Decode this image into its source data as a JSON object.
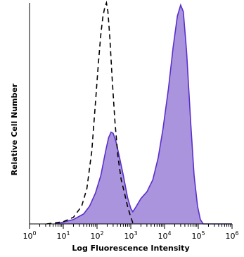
{
  "chart_data": {
    "type": "area",
    "title": "",
    "xlabel": "Log Fluorescence Intensity",
    "ylabel": "Relative Cell Number",
    "x_scale": "log",
    "xlim": [
      1,
      1000000
    ],
    "ylim": [
      0,
      1
    ],
    "grid": false,
    "legend": "none",
    "y_ticks": "none",
    "x_ticks": [
      {
        "value": 1,
        "base": "10",
        "exp": "0"
      },
      {
        "value": 10,
        "base": "10",
        "exp": "1"
      },
      {
        "value": 100,
        "base": "10",
        "exp": "2"
      },
      {
        "value": 1000,
        "base": "10",
        "exp": "3"
      },
      {
        "value": 10000,
        "base": "10",
        "exp": "4"
      },
      {
        "value": 100000,
        "base": "10",
        "exp": "5"
      },
      {
        "value": 1000000,
        "base": "10",
        "exp": "6"
      }
    ],
    "series": [
      {
        "style": "filled",
        "color": "#a994dd",
        "stroke": "#5b2fc9",
        "points": [
          [
            5.6,
            0.0
          ],
          [
            8,
            0.005
          ],
          [
            10,
            0.008
          ],
          [
            20,
            0.02
          ],
          [
            40,
            0.045
          ],
          [
            60,
            0.08
          ],
          [
            90,
            0.14
          ],
          [
            130,
            0.22
          ],
          [
            180,
            0.33
          ],
          [
            220,
            0.39
          ],
          [
            260,
            0.415
          ],
          [
            300,
            0.41
          ],
          [
            360,
            0.375
          ],
          [
            450,
            0.31
          ],
          [
            600,
            0.22
          ],
          [
            800,
            0.12
          ],
          [
            1000,
            0.07
          ],
          [
            1150,
            0.055
          ],
          [
            1400,
            0.075
          ],
          [
            2000,
            0.115
          ],
          [
            3000,
            0.145
          ],
          [
            4500,
            0.2
          ],
          [
            6500,
            0.3
          ],
          [
            9000,
            0.43
          ],
          [
            13000,
            0.61
          ],
          [
            18000,
            0.8
          ],
          [
            24000,
            0.94
          ],
          [
            30000,
            0.99
          ],
          [
            36000,
            0.96
          ],
          [
            45000,
            0.78
          ],
          [
            60000,
            0.45
          ],
          [
            75000,
            0.22
          ],
          [
            95000,
            0.08
          ],
          [
            115000,
            0.02
          ],
          [
            140000,
            0.0
          ],
          [
            1000000,
            0.0
          ]
        ]
      },
      {
        "style": "dashed",
        "color": "#000000",
        "points": [
          [
            3.2,
            0.0
          ],
          [
            6,
            0.005
          ],
          [
            10,
            0.01
          ],
          [
            20,
            0.03
          ],
          [
            35,
            0.08
          ],
          [
            50,
            0.16
          ],
          [
            70,
            0.33
          ],
          [
            90,
            0.55
          ],
          [
            110,
            0.73
          ],
          [
            130,
            0.86
          ],
          [
            150,
            0.94
          ],
          [
            170,
            0.98
          ],
          [
            190,
            1.0
          ],
          [
            210,
            0.96
          ],
          [
            240,
            0.84
          ],
          [
            280,
            0.66
          ],
          [
            340,
            0.46
          ],
          [
            420,
            0.3
          ],
          [
            520,
            0.2
          ],
          [
            650,
            0.14
          ],
          [
            800,
            0.08
          ],
          [
            1000,
            0.03
          ],
          [
            1150,
            0.005
          ],
          [
            1300,
            0.0
          ]
        ]
      }
    ]
  }
}
